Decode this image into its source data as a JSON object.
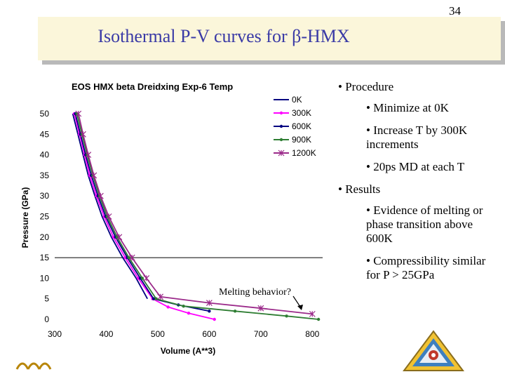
{
  "page_number": "34",
  "slide_title": "Isothermal P-V curves for β-HMX",
  "bullets": [
    {
      "level": 1,
      "text": "• Procedure"
    },
    {
      "level": 2,
      "text": "• Minimize at 0K"
    },
    {
      "level": 2,
      "text": "• Increase T by 300K increments"
    },
    {
      "level": 2,
      "text": "• 20ps MD at each T"
    },
    {
      "level": 1,
      "text": "• Results"
    },
    {
      "level": 2,
      "text": "• Evidence of melting or phase transition above 600K"
    },
    {
      "level": 2,
      "text": "• Compressibility similar for P > 25GPa"
    }
  ],
  "colors": {
    "title_bg": "#fbf6da",
    "title_text": "#3a3aa6"
  },
  "chart_data": {
    "type": "line",
    "title": "EOS HMX beta Dreidxing Exp-6 Temp",
    "xlabel": "Volume (A**3)",
    "ylabel": "Pressure (GPa)",
    "xlim": [
      300,
      820
    ],
    "ylim": [
      0,
      50
    ],
    "xticks": [
      300,
      400,
      500,
      600,
      700,
      800
    ],
    "yticks": [
      0,
      5,
      10,
      15,
      20,
      25,
      30,
      35,
      40,
      45,
      50
    ],
    "legend_position": "top-right",
    "annotation": "Melting behavior?",
    "series": [
      {
        "name": "0K",
        "color": "#000080",
        "marker": "none",
        "x": [
          335,
          345,
          355,
          365,
          378,
          392,
          410,
          432,
          458,
          480
        ],
        "y": [
          50,
          45,
          40,
          35,
          30,
          25,
          20,
          15,
          10,
          5
        ]
      },
      {
        "name": "300K",
        "color": "#ff00ff",
        "marker": "dot",
        "x": [
          338,
          348,
          358,
          368,
          381,
          396,
          414,
          437,
          462,
          490,
          520,
          560,
          610
        ],
        "y": [
          50,
          45,
          40,
          35,
          30,
          25,
          20,
          15,
          10,
          5,
          3,
          1.5,
          0
        ]
      },
      {
        "name": "600K",
        "color": "#000080",
        "marker": "dot",
        "x": [
          340,
          350,
          360,
          371,
          384,
          399,
          418,
          441,
          466,
          492,
          540,
          600
        ],
        "y": [
          50,
          45,
          40,
          35,
          30,
          25,
          20,
          15,
          10,
          5,
          3.5,
          2
        ]
      },
      {
        "name": "900K",
        "color": "#2e7d32",
        "marker": "dot",
        "x": [
          343,
          353,
          363,
          374,
          387,
          402,
          421,
          444,
          470,
          497,
          550,
          650,
          750,
          812
        ],
        "y": [
          50,
          45,
          40,
          35,
          30,
          25,
          20,
          15,
          10,
          5,
          3.2,
          2,
          0.8,
          0
        ]
      },
      {
        "name": "1200K",
        "color": "#9b2a8a",
        "marker": "star",
        "x": [
          346,
          355,
          365,
          376,
          389,
          405,
          425,
          450,
          478,
          505,
          600,
          700,
          800
        ],
        "y": [
          50,
          45,
          40,
          35,
          30,
          25,
          20,
          15,
          10,
          5.5,
          4,
          2.7,
          1.3
        ]
      }
    ]
  }
}
